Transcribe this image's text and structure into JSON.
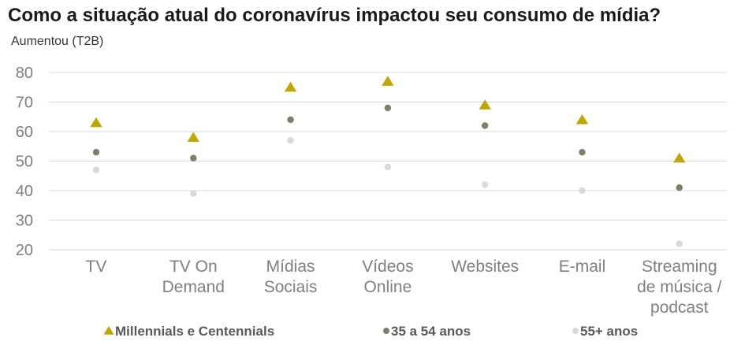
{
  "title": "Como a situação atual do coronavírus impactou seu consumo de mídia?",
  "subtitle": "Aumentou (T2B)",
  "colors": {
    "millennials": "#bfa600",
    "age35_54": "#7d8069",
    "age55plus": "#d9d9d9",
    "grid": "#d9d9d9"
  },
  "chart_data": {
    "type": "scatter",
    "categories": [
      [
        "TV"
      ],
      [
        "TV On",
        "Demand"
      ],
      [
        "Mídias",
        "Sociais"
      ],
      [
        "Vídeos",
        "Online"
      ],
      [
        "Websites"
      ],
      [
        "E-mail"
      ],
      [
        "Streaming",
        "de música /",
        "podcast"
      ]
    ],
    "yticks": [
      "80",
      "70",
      "60",
      "50",
      "40",
      "30",
      "20"
    ],
    "ylim": [
      20,
      80
    ],
    "grid": true,
    "legend_position": "bottom",
    "series": [
      {
        "name": "Millennials e Centennials",
        "marker": "triangle",
        "values": [
          63,
          58,
          75,
          77,
          69,
          64,
          51
        ]
      },
      {
        "name": "35 a 54 anos",
        "marker": "circle",
        "values": [
          53,
          51,
          64,
          68,
          62,
          53,
          41
        ]
      },
      {
        "name": "55+ anos",
        "marker": "circle",
        "values": [
          47,
          39,
          57,
          48,
          42,
          40,
          22
        ]
      }
    ]
  }
}
